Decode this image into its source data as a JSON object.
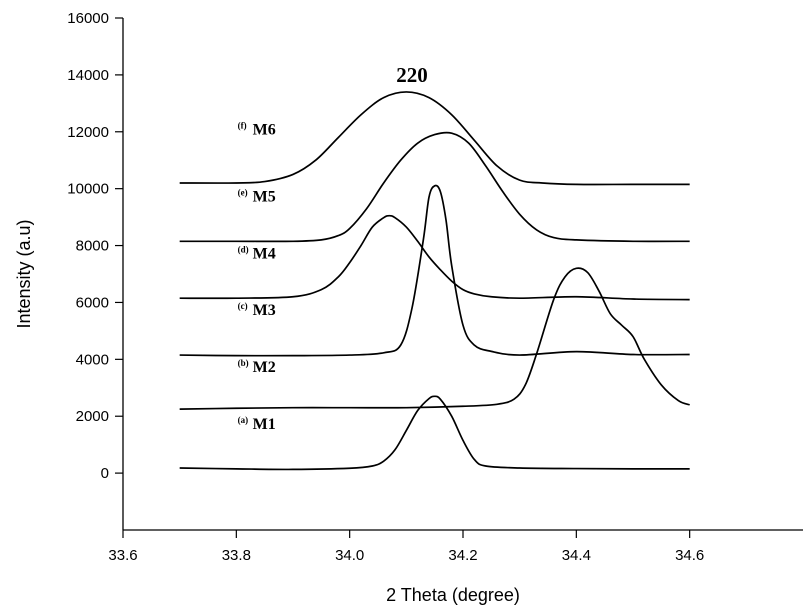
{
  "chart_data": {
    "type": "line",
    "title": "",
    "xlabel": "2 Theta (degree)",
    "ylabel": "Intensity (a.u)",
    "xlim": [
      33.6,
      34.8
    ],
    "ylim": [
      -2000,
      16000
    ],
    "xticks": [
      33.6,
      33.8,
      34.0,
      34.2,
      34.4,
      34.6
    ],
    "xtick_labels": [
      "33.6",
      "33.8",
      "34.0",
      "34.2",
      "34.4",
      "34.6"
    ],
    "yticks": [
      0,
      2000,
      4000,
      6000,
      8000,
      10000,
      12000,
      14000,
      16000
    ],
    "ytick_labels": [
      "0",
      "2000",
      "4000",
      "6000",
      "8000",
      "10000",
      "12000",
      "14000",
      "16000"
    ],
    "grid": false,
    "annotations": [
      {
        "text": "220",
        "x": 34.11,
        "y": 14000
      }
    ],
    "series": [
      {
        "name": "M1",
        "tag": "(a)",
        "label_pos": {
          "x": 33.7,
          "y": 1550
        },
        "x": [
          33.7,
          33.8,
          33.9,
          34.0,
          34.04,
          34.06,
          34.08,
          34.1,
          34.12,
          34.14,
          34.15,
          34.16,
          34.18,
          34.2,
          34.22,
          34.24,
          34.3,
          34.4,
          34.5,
          34.6
        ],
        "y": [
          180,
          150,
          130,
          170,
          250,
          420,
          820,
          1500,
          2200,
          2620,
          2700,
          2600,
          2000,
          1150,
          480,
          250,
          180,
          160,
          150,
          150
        ]
      },
      {
        "name": "M2",
        "tag": "(b)",
        "label_pos": {
          "x": 33.7,
          "y": 3550
        },
        "x": [
          33.7,
          33.8,
          33.9,
          34.0,
          34.1,
          34.2,
          34.26,
          34.29,
          34.31,
          34.33,
          34.36,
          34.38,
          34.4,
          34.42,
          34.44,
          34.46,
          34.48,
          34.5,
          34.52,
          34.55,
          34.58,
          34.6
        ],
        "y": [
          2250,
          2280,
          2300,
          2300,
          2300,
          2350,
          2420,
          2600,
          3100,
          4200,
          6100,
          6900,
          7200,
          7050,
          6400,
          5600,
          5200,
          4800,
          4000,
          3100,
          2550,
          2400
        ]
      },
      {
        "name": "M3",
        "tag": "(c)",
        "label_pos": {
          "x": 33.7,
          "y": 5550
        },
        "x": [
          33.7,
          33.8,
          33.9,
          34.0,
          34.06,
          34.09,
          34.11,
          34.13,
          34.14,
          34.15,
          34.16,
          34.17,
          34.18,
          34.2,
          34.22,
          34.25,
          34.3,
          34.4,
          34.5,
          34.6
        ],
        "y": [
          4150,
          4130,
          4130,
          4150,
          4230,
          4500,
          5800,
          8200,
          9700,
          10100,
          9900,
          8900,
          7300,
          5200,
          4500,
          4280,
          4150,
          4270,
          4170,
          4170
        ]
      },
      {
        "name": "M4",
        "tag": "(d)",
        "label_pos": {
          "x": 33.7,
          "y": 7550
        },
        "x": [
          33.7,
          33.8,
          33.9,
          33.95,
          33.98,
          34.0,
          34.02,
          34.04,
          34.06,
          34.07,
          34.08,
          34.1,
          34.12,
          34.14,
          34.16,
          34.18,
          34.2,
          34.22,
          34.25,
          34.3,
          34.4,
          34.5,
          34.6
        ],
        "y": [
          6150,
          6150,
          6200,
          6450,
          6900,
          7400,
          8000,
          8650,
          8980,
          9050,
          8980,
          8650,
          8150,
          7600,
          7150,
          6750,
          6450,
          6300,
          6200,
          6150,
          6200,
          6120,
          6100
        ]
      },
      {
        "name": "M5",
        "tag": "(e)",
        "label_pos": {
          "x": 33.7,
          "y": 9550
        },
        "x": [
          33.7,
          33.8,
          33.9,
          33.95,
          33.98,
          34.0,
          34.03,
          34.06,
          34.09,
          34.12,
          34.15,
          34.18,
          34.21,
          34.24,
          34.27,
          34.3,
          34.33,
          34.36,
          34.4,
          34.5,
          34.6
        ],
        "y": [
          8150,
          8150,
          8150,
          8200,
          8350,
          8600,
          9300,
          10200,
          11000,
          11600,
          11900,
          11950,
          11600,
          10800,
          9900,
          9100,
          8550,
          8280,
          8200,
          8150,
          8150
        ]
      },
      {
        "name": "M6",
        "tag": "(f)",
        "label_pos": {
          "x": 33.7,
          "y": 11900
        },
        "x": [
          33.7,
          33.8,
          33.85,
          33.9,
          33.94,
          33.98,
          34.02,
          34.06,
          34.1,
          34.14,
          34.18,
          34.22,
          34.26,
          34.3,
          34.34,
          34.4,
          34.5,
          34.6
        ],
        "y": [
          10200,
          10200,
          10250,
          10500,
          11000,
          11800,
          12600,
          13200,
          13400,
          13200,
          12600,
          11700,
          10800,
          10300,
          10200,
          10150,
          10150,
          10150
        ]
      }
    ]
  }
}
